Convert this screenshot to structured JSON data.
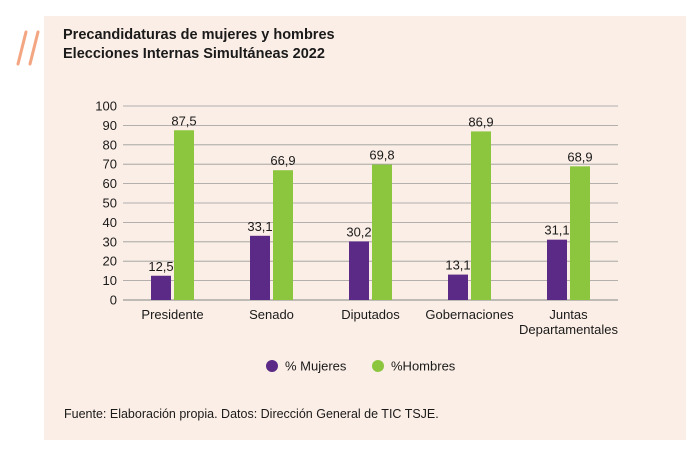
{
  "colors": {
    "panel": "#fbeee6",
    "accent": "#f4a582",
    "mujeres": "#5b2a86",
    "hombres": "#8cc63f",
    "grid": "#9a9a9a"
  },
  "figure": {
    "title_line1": "Precandidaturas de mujeres y hombres",
    "title_line2": "Elecciones Internas Simultáneas 2022",
    "source": "Fuente: Elaboración propia. Datos: Dirección General de TIC TSJE."
  },
  "chart_data": {
    "type": "bar",
    "categories": [
      [
        "Presidente"
      ],
      [
        "Senado"
      ],
      [
        "Diputados"
      ],
      [
        "Gobernaciones"
      ],
      [
        "Juntas",
        "Departamentales"
      ]
    ],
    "series": [
      {
        "name": "% Mujeres",
        "values": [
          12.5,
          33.1,
          30.2,
          13.1,
          31.1
        ],
        "labels": [
          "12,5",
          "33,1",
          "30,2",
          "13,1",
          "31,1"
        ]
      },
      {
        "name": "%Hombres",
        "values": [
          87.5,
          66.9,
          69.8,
          86.9,
          68.9
        ],
        "labels": [
          "87,5",
          "66,9",
          "69,8",
          "86,9",
          "68,9"
        ]
      }
    ],
    "ylim": [
      0,
      100
    ],
    "yticks": [
      0,
      10,
      20,
      30,
      40,
      50,
      60,
      70,
      80,
      90,
      100
    ],
    "grid": true,
    "legend": "bottom"
  }
}
